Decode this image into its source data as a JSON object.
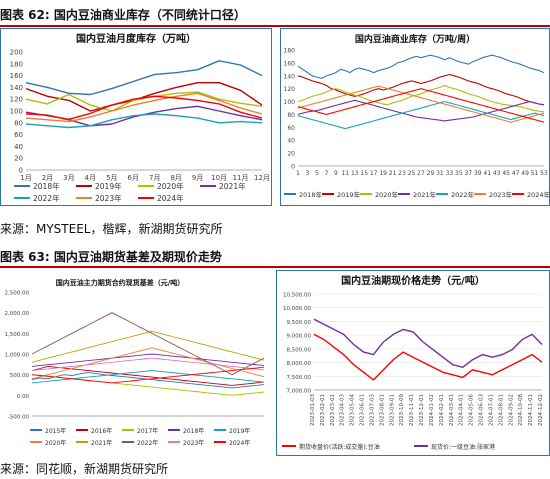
{
  "figures": [
    {
      "label": "图表 62:",
      "title": "国内豆油商业库存（不同统计口径）",
      "source": "来源：MYSTEEL，楷辉，新湖期货研究所"
    },
    {
      "label": "图表 63:",
      "title": "国内豆油期货基差及期现价走势",
      "source": "来源：同花顺，新湖期货研究所"
    }
  ],
  "chart_data": [
    {
      "type": "line",
      "title": "国内豆油月度库存（万吨）",
      "categories": [
        "1月",
        "2月",
        "3月",
        "4月",
        "5月",
        "6月",
        "7月",
        "8月",
        "9月",
        "10月",
        "11月",
        "12月"
      ],
      "y_ticks": [
        "0",
        "20",
        "40",
        "60",
        "80",
        "100",
        "120",
        "140",
        "160",
        "180",
        "200"
      ],
      "ylim": [
        0,
        200
      ],
      "legend_position": "bottom",
      "series": [
        {
          "name": "2018年",
          "color": "#2e75b6",
          "values": [
            148,
            140,
            130,
            128,
            138,
            150,
            162,
            165,
            170,
            185,
            178,
            160
          ]
        },
        {
          "name": "2019年",
          "color": "#c00000",
          "values": [
            138,
            125,
            118,
            100,
            110,
            118,
            130,
            140,
            148,
            148,
            135,
            110
          ]
        },
        {
          "name": "2020年",
          "color": "#a9c200",
          "values": [
            120,
            112,
            128,
            110,
            100,
            118,
            125,
            130,
            132,
            120,
            113,
            108
          ]
        },
        {
          "name": "2021年",
          "color": "#7030a0",
          "values": [
            95,
            93,
            85,
            75,
            78,
            90,
            98,
            104,
            108,
            100,
            92,
            85
          ]
        },
        {
          "name": "2022年",
          "color": "#17a2b8",
          "values": [
            78,
            75,
            72,
            75,
            85,
            92,
            95,
            92,
            88,
            80,
            82,
            80
          ]
        },
        {
          "name": "2023年",
          "color": "#ed7d31",
          "values": [
            88,
            85,
            82,
            90,
            100,
            110,
            118,
            125,
            130,
            118,
            105,
            95
          ]
        },
        {
          "name": "2024年",
          "color": "#ff0000",
          "values": [
            98,
            92,
            86,
            96,
            110,
            120,
            125,
            122,
            118,
            112,
            98,
            88
          ]
        }
      ]
    },
    {
      "type": "line",
      "title": "国内豆油商业库存（万吨/周）",
      "x_ticks": [
        "1",
        "3",
        "5",
        "7",
        "9",
        "11",
        "13",
        "15",
        "17",
        "19",
        "21",
        "23",
        "25",
        "27",
        "29",
        "31",
        "33",
        "35",
        "37",
        "39",
        "41",
        "43",
        "45",
        "47",
        "49",
        "51",
        "53"
      ],
      "y_ticks": [
        "0",
        "20",
        "40",
        "60",
        "80",
        "100",
        "120",
        "140",
        "160",
        "180"
      ],
      "ylim": [
        0,
        180
      ],
      "legend_position": "bottom",
      "series": [
        {
          "name": "2018年",
          "color": "#2e75b6",
          "values": [
            155,
            150,
            145,
            140,
            138,
            136,
            140,
            142,
            145,
            150,
            148,
            145,
            150,
            152,
            150,
            148,
            145,
            148,
            150,
            152,
            155,
            160,
            162,
            165,
            168,
            170,
            168,
            170,
            172,
            170,
            168,
            165,
            168,
            165,
            162,
            160,
            158,
            162,
            165,
            168,
            170,
            172,
            170,
            168,
            165,
            162,
            160,
            158,
            155,
            152,
            150,
            148,
            145
          ]
        },
        {
          "name": "2019年",
          "color": "#c00000",
          "values": [
            140,
            138,
            135,
            132,
            130,
            128,
            125,
            120,
            118,
            115,
            112,
            110,
            108,
            110,
            112,
            115,
            118,
            120,
            118,
            120,
            122,
            125,
            128,
            130,
            132,
            130,
            128,
            130,
            132,
            135,
            138,
            140,
            142,
            140,
            138,
            135,
            132,
            130,
            128,
            125,
            122,
            120,
            118,
            115,
            112,
            110,
            108,
            105,
            102,
            100,
            98,
            96,
            95
          ]
        },
        {
          "name": "2020年",
          "color": "#a9c200",
          "values": [
            100,
            102,
            105,
            108,
            110,
            112,
            115,
            118,
            120,
            118,
            115,
            112,
            110,
            108,
            105,
            102,
            100,
            98,
            96,
            95,
            98,
            100,
            102,
            105,
            108,
            110,
            112,
            115,
            118,
            120,
            122,
            125,
            122,
            120,
            118,
            115,
            112,
            110,
            108,
            105,
            102,
            100,
            98,
            96,
            95,
            94,
            93,
            92,
            90,
            88,
            86,
            85,
            84
          ]
        },
        {
          "name": "2021年",
          "color": "#7030a0",
          "values": [
            80,
            82,
            84,
            85,
            86,
            88,
            90,
            92,
            94,
            96,
            98,
            100,
            102,
            100,
            98,
            96,
            94,
            92,
            90,
            88,
            86,
            84,
            82,
            80,
            78,
            76,
            75,
            74,
            73,
            72,
            71,
            70,
            71,
            72,
            73,
            74,
            75,
            76,
            78,
            80,
            82,
            84,
            86,
            88,
            90,
            92,
            94,
            96,
            98,
            100,
            98,
            96,
            95
          ]
        },
        {
          "name": "2022年",
          "color": "#17a2b8",
          "values": [
            78,
            76,
            74,
            72,
            70,
            68,
            66,
            64,
            62,
            60,
            58,
            60,
            62,
            64,
            66,
            68,
            70,
            72,
            74,
            76,
            78,
            80,
            82,
            84,
            86,
            88,
            90,
            92,
            94,
            96,
            98,
            100,
            98,
            96,
            94,
            92,
            90,
            88,
            86,
            84,
            82,
            80,
            78,
            76,
            74,
            72,
            74,
            76,
            78,
            80,
            82,
            80,
            78
          ]
        },
        {
          "name": "2023年",
          "color": "#ed7d31",
          "values": [
            90,
            92,
            94,
            96,
            98,
            100,
            102,
            104,
            106,
            108,
            110,
            112,
            114,
            116,
            118,
            120,
            122,
            124,
            122,
            120,
            118,
            116,
            114,
            112,
            110,
            108,
            106,
            104,
            102,
            100,
            98,
            96,
            94,
            92,
            90,
            88,
            86,
            84,
            82,
            80,
            78,
            76,
            74,
            72,
            70,
            68,
            70,
            72,
            74,
            76,
            78,
            80,
            82
          ]
        },
        {
          "name": "2024年",
          "color": "#ff0000",
          "values": [
            92,
            90,
            88,
            86,
            84,
            82,
            80,
            82,
            84,
            86,
            88,
            90,
            92,
            94,
            96,
            98,
            100,
            102,
            104,
            106,
            108,
            110,
            112,
            114,
            116,
            118,
            120,
            118,
            116,
            114,
            112,
            110,
            108,
            106,
            104,
            102,
            100,
            98,
            96,
            94,
            92,
            90,
            88,
            86,
            84,
            82,
            80,
            78,
            76,
            74,
            72,
            70,
            68
          ]
        }
      ]
    },
    {
      "type": "line",
      "title": "国内豆油主力期货合约现货基差",
      "unit": "（元/吨）",
      "y_ticks": [
        "-500.00",
        "0.00",
        "500.00",
        "1,000.00",
        "1,500.00",
        "2,000.00",
        "2,500.00"
      ],
      "ylim": [
        -500,
        2500
      ],
      "legend_position": "bottom",
      "series": [
        {
          "name": "2015年",
          "color": "#2e75b6",
          "values": [
            380,
            420,
            400,
            450,
            500,
            480,
            520,
            550,
            530,
            500,
            480,
            460,
            440,
            420,
            400,
            380,
            360,
            340,
            320,
            300,
            280,
            260,
            240,
            220,
            200,
            180,
            200,
            220,
            240,
            260
          ]
        },
        {
          "name": "2016年",
          "color": "#c00000",
          "values": [
            600,
            650,
            700,
            680,
            660,
            640,
            620,
            600,
            580,
            560,
            540,
            520,
            500,
            480,
            460,
            440,
            420,
            400,
            380,
            360,
            340,
            320,
            300,
            280,
            260,
            240,
            260,
            280,
            300,
            320
          ]
        },
        {
          "name": "2017年",
          "color": "#a9c200",
          "values": [
            500,
            480,
            460,
            440,
            420,
            400,
            380,
            360,
            340,
            320,
            300,
            280,
            260,
            240,
            220,
            200,
            180,
            160,
            140,
            120,
            100,
            80,
            60,
            40,
            20,
            0,
            20,
            40,
            60,
            80
          ]
        },
        {
          "name": "2018年",
          "color": "#7030a0",
          "values": [
            700,
            720,
            740,
            760,
            780,
            800,
            820,
            840,
            860,
            880,
            900,
            920,
            940,
            960,
            980,
            1000,
            980,
            960,
            940,
            920,
            900,
            880,
            860,
            840,
            820,
            800,
            780,
            760,
            740,
            720
          ]
        },
        {
          "name": "2019年",
          "color": "#17a2b8",
          "values": [
            300,
            320,
            340,
            360,
            380,
            400,
            420,
            440,
            460,
            480,
            500,
            520,
            540,
            560,
            580,
            600,
            580,
            560,
            540,
            520,
            500,
            480,
            460,
            440,
            420,
            400,
            380,
            360,
            340,
            320
          ]
        },
        {
          "name": "2020年",
          "color": "#ed7d31",
          "values": [
            400,
            450,
            500,
            550,
            600,
            650,
            700,
            750,
            800,
            850,
            900,
            950,
            1000,
            1050,
            1100,
            1150,
            1100,
            1050,
            1000,
            950,
            900,
            850,
            800,
            750,
            700,
            650,
            600,
            550,
            500,
            450
          ]
        },
        {
          "name": "2021年",
          "color": "#bfa000",
          "values": [
            800,
            850,
            900,
            950,
            1000,
            1050,
            1100,
            1150,
            1200,
            1250,
            1300,
            1350,
            1400,
            1450,
            1500,
            1550,
            1500,
            1450,
            1400,
            1350,
            1300,
            1250,
            1200,
            1150,
            1100,
            1050,
            1000,
            950,
            900,
            850
          ]
        },
        {
          "name": "2022年",
          "color": "#8c564b",
          "values": [
            1000,
            1100,
            1200,
            1300,
            1400,
            1500,
            1600,
            1700,
            1800,
            1900,
            2000,
            1900,
            1800,
            1700,
            1600,
            1500,
            1400,
            1300,
            1200,
            1100,
            1000,
            900,
            800,
            700,
            600,
            500,
            600,
            700,
            800,
            900
          ]
        },
        {
          "name": "2023年",
          "color": "#e377c2",
          "values": [
            600,
            620,
            640,
            660,
            680,
            700,
            720,
            740,
            760,
            780,
            800,
            820,
            840,
            860,
            880,
            900,
            880,
            860,
            840,
            820,
            800,
            780,
            760,
            740,
            720,
            700,
            680,
            660,
            640,
            620
          ]
        },
        {
          "name": "2024年",
          "color": "#ff0000",
          "values": [
            500,
            480,
            460,
            440,
            420,
            400,
            380,
            360,
            340,
            320,
            300,
            320,
            340,
            360,
            380,
            400,
            420,
            440,
            460,
            480,
            500,
            520,
            540,
            560,
            580,
            600,
            620,
            640,
            660,
            680
          ]
        }
      ]
    },
    {
      "type": "line",
      "title": "国内豆油期现价格走势",
      "unit": "（元/吨）",
      "y_ticks": [
        "7,000.00",
        "7,500.00",
        "8,000.00",
        "8,500.00",
        "9,000.00",
        "9,500.00",
        "10,000.00",
        "10,500.00"
      ],
      "ylim": [
        6800,
        10600
      ],
      "x_ticks": [
        "2023-01-03",
        "2023-02-01",
        "2023-03-01",
        "2023-04-03",
        "2023-05-04",
        "2023-06-01",
        "2023-07-03",
        "2023-08-01",
        "2023-09-01",
        "2023-10-09",
        "2023-11-01",
        "2023-12-01",
        "2024-01-02",
        "2024-02-01",
        "2024-03-01",
        "2024-04-01",
        "2024-05-06",
        "2024-06-03",
        "2024-07-01",
        "2024-08-01",
        "2024-09-02",
        "2024-10-08",
        "2024-11-01",
        "2024-12-02"
      ],
      "legend_position": "bottom",
      "series": [
        {
          "name": "期货收盘价(活跃:成交量):豆油",
          "color": "#ff0000",
          "values": [
            9000,
            8800,
            8500,
            8200,
            7800,
            7500,
            7200,
            7600,
            8000,
            8300,
            8100,
            7900,
            7700,
            7500,
            7400,
            7300,
            7600,
            7500,
            7400,
            7600,
            7800,
            8000,
            8200,
            7900
          ]
        },
        {
          "name": "现货价:一级豆油:张家港",
          "color": "#7030a0",
          "values": [
            9600,
            9400,
            9200,
            9000,
            8600,
            8300,
            8200,
            8700,
            9000,
            9200,
            9100,
            8700,
            8400,
            8100,
            7800,
            7700,
            8000,
            8200,
            8100,
            8200,
            8400,
            8800,
            9000,
            8600
          ]
        }
      ]
    }
  ]
}
